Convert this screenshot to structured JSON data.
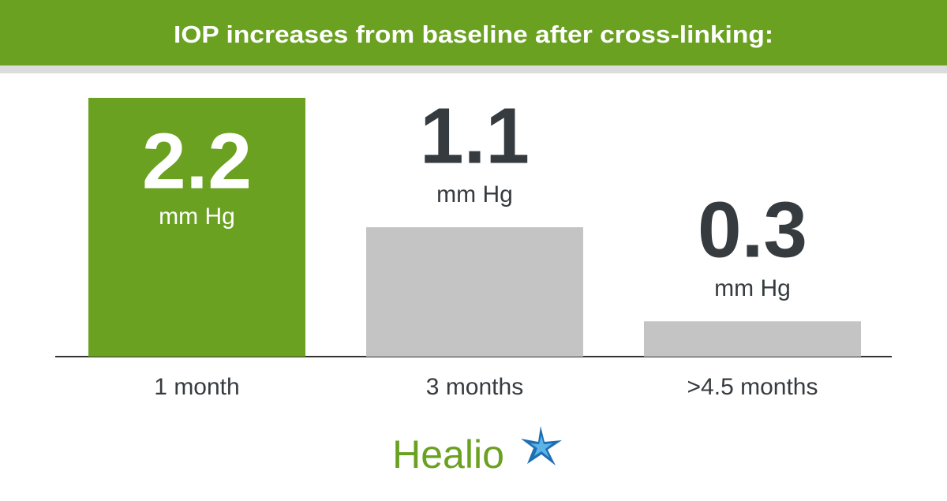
{
  "chart_data": {
    "type": "bar",
    "title": "IOP increases from baseline after cross-linking:",
    "categories": [
      "1 month",
      "3 months",
      ">4.5 months"
    ],
    "values": [
      2.2,
      1.1,
      0.3
    ],
    "unit": "mm Hg",
    "colors": [
      "#6aa121",
      "#c4c4c4",
      "#c4c4c4"
    ],
    "logo": "Healio"
  }
}
